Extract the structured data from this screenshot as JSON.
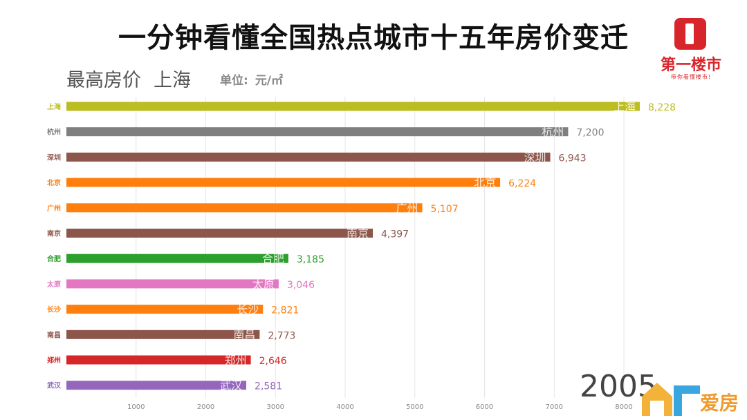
{
  "header": {
    "title": "一分钟看懂全国热点城市十五年房价变迁",
    "subtitle_metric": "最高房价",
    "subtitle_city": "上海",
    "unit_label": "单位:",
    "unit_value": "元/㎡"
  },
  "logo": {
    "name": "第一楼市",
    "slogan": "带你看懂楼市!"
  },
  "year": "2005",
  "watermark": {
    "text": "爱房"
  },
  "chart_data": {
    "type": "bar",
    "orientation": "horizontal",
    "categories": [
      "上海",
      "杭州",
      "深圳",
      "北京",
      "广州",
      "南京",
      "合肥",
      "太原",
      "长沙",
      "南昌",
      "郑州",
      "武汉"
    ],
    "values": [
      8228,
      7200,
      6943,
      6224,
      5107,
      4397,
      3185,
      3046,
      2821,
      2773,
      2646,
      2581
    ],
    "value_labels": [
      "8,228",
      "7,200",
      "6,943",
      "6,224",
      "5,107",
      "4,397",
      "3,185",
      "3,046",
      "2,821",
      "2,773",
      "2,646",
      "2,581"
    ],
    "colors": [
      "#bcbd22",
      "#7f7f7f",
      "#8c564b",
      "#ff7f0e",
      "#ff7f0e",
      "#8c564b",
      "#2ca02c",
      "#e377c2",
      "#ff7f0e",
      "#8c564b",
      "#d62728",
      "#9467bd"
    ],
    "x_ticks": [
      1000,
      2000,
      3000,
      4000,
      5000,
      6000,
      7000,
      8000
    ],
    "x_tick_labels": [
      "1000",
      "2000",
      "3000",
      "4000",
      "5000",
      "6000",
      "7000",
      "8000"
    ],
    "xlim": [
      0,
      8228
    ],
    "grid": true
  }
}
